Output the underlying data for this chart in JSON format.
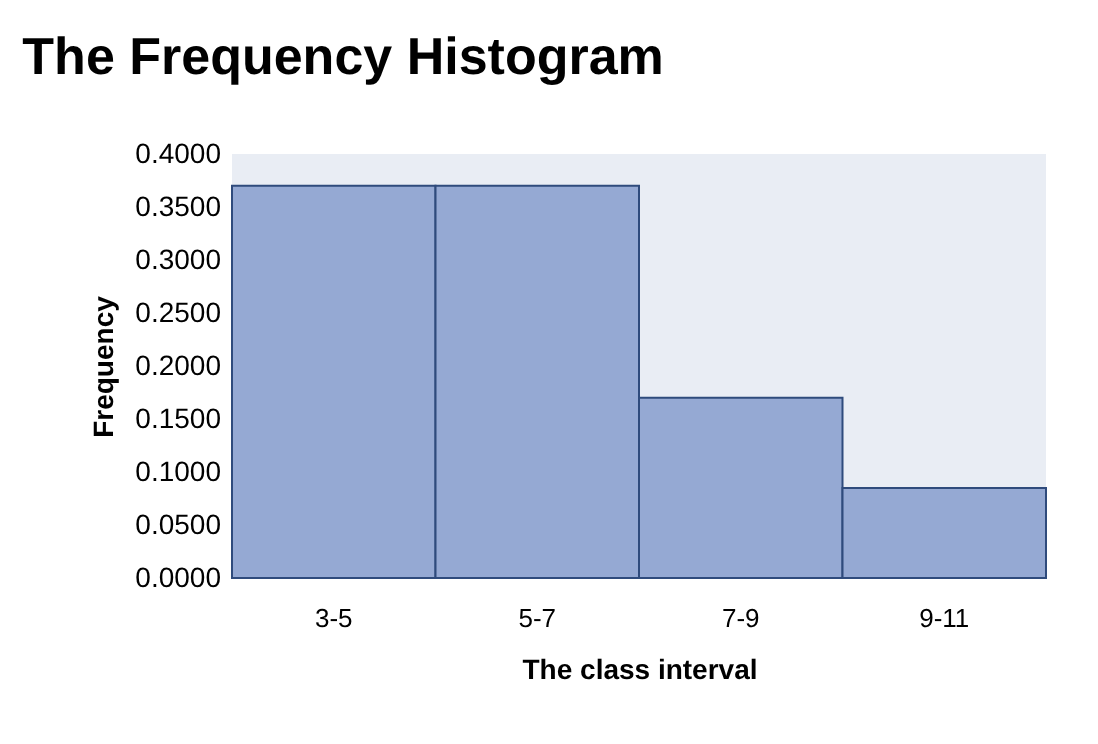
{
  "chart_data": {
    "type": "bar",
    "title": "The Frequency Histogram",
    "xlabel": "The class interval",
    "ylabel": "Frequency",
    "categories": [
      "3-5",
      "5-7",
      "7-9",
      "9-11"
    ],
    "values": [
      0.37,
      0.37,
      0.17,
      0.085
    ],
    "color": "#95a9d3",
    "ylim": [
      0,
      0.4
    ],
    "yticks": [
      {
        "value": 0,
        "label": "0.0000"
      },
      {
        "value": 0.05,
        "label": "0.0500"
      },
      {
        "value": 0.1,
        "label": "0.1000"
      },
      {
        "value": 0.15,
        "label": "0.1500"
      },
      {
        "value": 0.2,
        "label": "0.2000"
      },
      {
        "value": 0.25,
        "label": "0.2500"
      },
      {
        "value": 0.3,
        "label": "0.3000"
      },
      {
        "value": 0.35,
        "label": "0.3500"
      },
      {
        "value": 0.4,
        "label": "0.4000"
      }
    ],
    "grid": false
  }
}
